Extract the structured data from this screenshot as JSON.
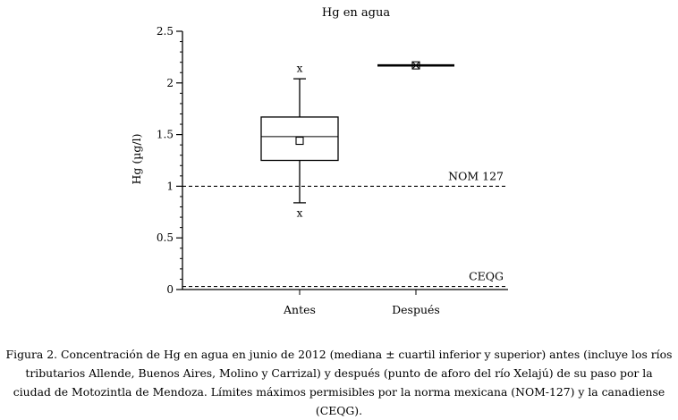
{
  "chart_data": {
    "type": "box",
    "title": "Hg en agua",
    "ylabel": "Hg (µg/l)",
    "xlabel": "",
    "ylim": [
      0,
      2.5
    ],
    "yticks": [
      "0",
      "0.5",
      "1",
      "1.5",
      "2",
      "2.5"
    ],
    "categories": [
      "Antes",
      "Después"
    ],
    "boxes": [
      {
        "category": "Antes",
        "whisker_low": 0.84,
        "q1": 1.25,
        "median": 1.48,
        "q3": 1.67,
        "whisker_high": 2.04,
        "mean": 1.44,
        "outliers": [
          0.74,
          2.14
        ]
      },
      {
        "category": "Después",
        "whisker_low": 2.17,
        "q1": 2.17,
        "median": 2.17,
        "q3": 2.17,
        "whisker_high": 2.17,
        "mean": 2.17,
        "outliers": []
      }
    ],
    "reference_lines": [
      {
        "label": "NOM 127",
        "value": 1.0
      },
      {
        "label": "CEQG",
        "value": 0.03
      }
    ],
    "grid": false
  },
  "caption": "Figura 2. Concentración de Hg en agua en junio de 2012 (mediana ± cuartil inferior y superior) antes (incluye los ríos tributarios Allende, Buenos Aires, Molino y Carrizal) y después (punto de aforo del río Xelajú) de su paso por la ciudad de Motozintla de Mendoza. Límites máximos permisibles por la norma mexicana (NOM-127) y la canadiense (CEQG)."
}
